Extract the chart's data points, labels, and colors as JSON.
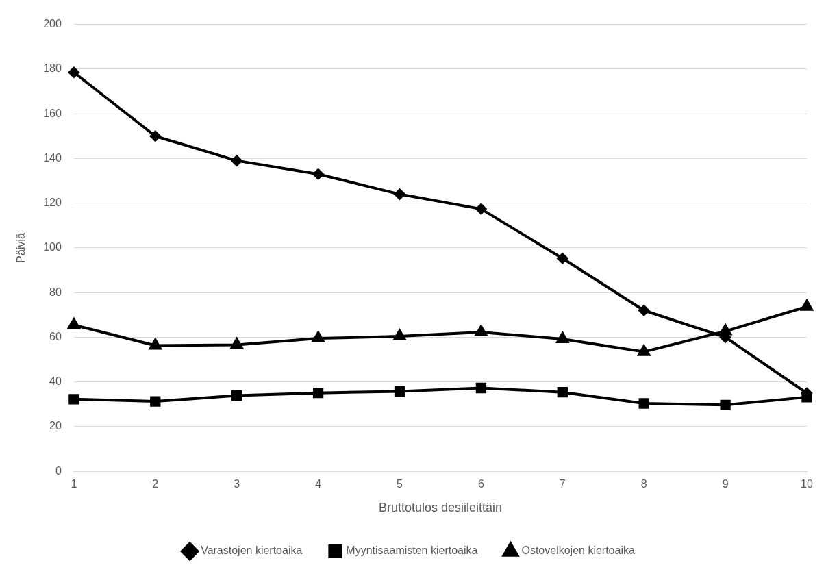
{
  "chart_data": {
    "type": "line",
    "xlabel": "Bruttotulos desiileittäin",
    "ylabel": "Päiviä",
    "categories": [
      "1",
      "2",
      "3",
      "4",
      "5",
      "6",
      "7",
      "8",
      "9",
      "10"
    ],
    "series": [
      {
        "name": "Varastojen kiertoaika",
        "color": "#000000",
        "marker": "diamond",
        "values": [
          178.5,
          150,
          139,
          133,
          124,
          117.4,
          95.3,
          72,
          60,
          35
        ]
      },
      {
        "name": "Myyntisaamisten kiertoaika",
        "color": "#000000",
        "marker": "square",
        "values": [
          32.3,
          31.3,
          33.9,
          35.1,
          35.8,
          37.3,
          35.4,
          30.4,
          29.7,
          33.2
        ]
      },
      {
        "name": "Ostovelkojen kiertoaika",
        "color": "#000000",
        "marker": "triangle",
        "values": [
          65.5,
          56.3,
          56.6,
          59.5,
          60.4,
          62.3,
          59.2,
          53.5,
          62.7,
          73.7
        ]
      }
    ],
    "ylim": [
      0,
      200
    ],
    "yticks": [
      0,
      20,
      40,
      60,
      80,
      100,
      120,
      140,
      160,
      180,
      200
    ],
    "grid": "y",
    "legend": "bottom",
    "line_style": "solid"
  }
}
